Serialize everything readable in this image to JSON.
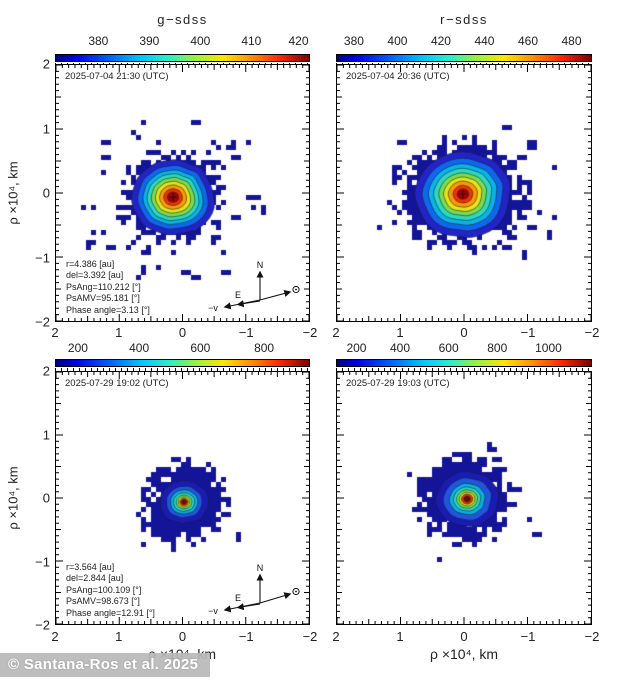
{
  "watermark": "© Santana-Ros et al. 2025",
  "compass": {
    "north": "N",
    "east": "E",
    "neg_velocity": "−v"
  },
  "axis": {
    "x_title": "ρ ×10⁴,  km",
    "y_title": "ρ ×10⁴,  km",
    "ticks": [
      "2",
      "1",
      "0",
      "−1",
      "−2"
    ]
  },
  "chart_data": {
    "type": "heatmap",
    "description": "Four-panel pixelated coma intensity maps with jet-colormap contour levels; axes in projected distance rho x10^4 km, both axes spanning 2 to -2 (inverted).",
    "x_range": [
      2,
      -2
    ],
    "y_range": [
      -2,
      2
    ],
    "panels": [
      {
        "id": "top-left",
        "title": "g−sdss",
        "timestamp": "2025-07-04 21:30 (UTC)",
        "colorbar_ticks": [
          {
            "label": "380",
            "pos": 0.17
          },
          {
            "label": "390",
            "pos": 0.37
          },
          {
            "label": "400",
            "pos": 0.57
          },
          {
            "label": "410",
            "pos": 0.77
          },
          {
            "label": "420",
            "pos": 0.955
          }
        ],
        "annotation": [
          "r=4.386 [au]",
          "del=3.392 [au]",
          "PsAng=110.212 [°]",
          "PsAMV=95.181  [°]",
          "Phase angle=3.13 [°]"
        ],
        "blob": {
          "seed": 11,
          "pixel": 5,
          "cx": 0.459,
          "cy": 0.512,
          "mass_rx": 50,
          "mass_ry": 44,
          "scatter_count": 62,
          "scatter_rx": 92,
          "scatter_ry": 78,
          "rings": [
            {
              "r": 40,
              "color": "#2323c8"
            },
            {
              "r": 34,
              "color": "#1166ee"
            },
            {
              "r": 29,
              "color": "#09b4e8"
            },
            {
              "r": 25,
              "color": "#2fd8c0"
            },
            {
              "r": 21,
              "color": "#7fdc48"
            },
            {
              "r": 17,
              "color": "#e6e41a"
            },
            {
              "r": 13,
              "color": "#ff9a00"
            },
            {
              "r": 9,
              "color": "#ee3300"
            },
            {
              "r": 5.5,
              "color": "#aa0000"
            }
          ],
          "cross": true
        }
      },
      {
        "id": "top-right",
        "title": "r−sdss",
        "timestamp": "2025-07-04 20:36 (UTC)",
        "colorbar_ticks": [
          {
            "label": "380",
            "pos": 0.07
          },
          {
            "label": "400",
            "pos": 0.24
          },
          {
            "label": "420",
            "pos": 0.41
          },
          {
            "label": "440",
            "pos": 0.58
          },
          {
            "label": "460",
            "pos": 0.75
          },
          {
            "label": "480",
            "pos": 0.92
          }
        ],
        "annotation": null,
        "blob": {
          "seed": 23,
          "pixel": 5,
          "cx": 0.492,
          "cy": 0.5,
          "mass_rx": 66,
          "mass_ry": 53,
          "scatter_count": 26,
          "scatter_rx": 88,
          "scatter_ry": 70,
          "rings": [
            {
              "r": 46,
              "color": "#2323c8"
            },
            {
              "r": 39,
              "color": "#1166ee"
            },
            {
              "r": 33,
              "color": "#09b4e8"
            },
            {
              "r": 28,
              "color": "#2fd8c0"
            },
            {
              "r": 23,
              "color": "#7fdc48"
            },
            {
              "r": 18.5,
              "color": "#e6e41a"
            },
            {
              "r": 14,
              "color": "#ff9a00"
            },
            {
              "r": 9.5,
              "color": "#ee3300"
            },
            {
              "r": 5.5,
              "color": "#aa0000"
            }
          ],
          "cross": true
        }
      },
      {
        "id": "bottom-left",
        "title": null,
        "timestamp": "2025-07-29 19:02 (UTC)",
        "colorbar_ticks": [
          {
            "label": "200",
            "pos": 0.09
          },
          {
            "label": "400",
            "pos": 0.33
          },
          {
            "label": "600",
            "pos": 0.57
          },
          {
            "label": "800",
            "pos": 0.82
          }
        ],
        "annotation": [
          "r=3.564 [au]",
          "del=2.844 [au]",
          "PsAng=100.109 [°]",
          "PsAMV=98.673  [°]",
          "Phase angle=12.91 [°]"
        ],
        "blob": {
          "seed": 37,
          "pixel": 5,
          "cx": 0.502,
          "cy": 0.512,
          "mass_rx": 44,
          "mass_ry": 41,
          "scatter_count": 6,
          "scatter_rx": 62,
          "scatter_ry": 56,
          "rings": [
            {
              "r": 23,
              "color": "#1b1bb4"
            },
            {
              "r": 17,
              "color": "#2255dd"
            },
            {
              "r": 13,
              "color": "#0ab0e0"
            },
            {
              "r": 10,
              "color": "#2fd8c0"
            },
            {
              "r": 7.5,
              "color": "#7fdc48"
            },
            {
              "r": 5.5,
              "color": "#e6e41a"
            },
            {
              "r": 4,
              "color": "#ee3300"
            },
            {
              "r": 2.5,
              "color": "#701000"
            }
          ],
          "cross": false
        }
      },
      {
        "id": "bottom-right",
        "title": null,
        "timestamp": "2025-07-29 19:03 (UTC)",
        "colorbar_ticks": [
          {
            "label": "200",
            "pos": 0.08
          },
          {
            "label": "400",
            "pos": 0.25
          },
          {
            "label": "600",
            "pos": 0.44
          },
          {
            "label": "800",
            "pos": 0.63
          },
          {
            "label": "1000",
            "pos": 0.83
          }
        ],
        "annotation": null,
        "blob": {
          "seed": 51,
          "pixel": 5,
          "cx": 0.508,
          "cy": 0.5,
          "mass_rx": 50,
          "mass_ry": 46,
          "scatter_count": 10,
          "scatter_rx": 70,
          "scatter_ry": 62,
          "rings": [
            {
              "r": 30,
              "color": "#1b1bb4"
            },
            {
              "r": 23,
              "color": "#2255dd"
            },
            {
              "r": 17,
              "color": "#0ab0e0"
            },
            {
              "r": 13,
              "color": "#2fd8c0"
            },
            {
              "r": 10,
              "color": "#7fdc48"
            },
            {
              "r": 7.5,
              "color": "#e6e41a"
            },
            {
              "r": 5.5,
              "color": "#ee3300"
            },
            {
              "r": 3.2,
              "color": "#5f1208"
            }
          ],
          "cross": false
        }
      }
    ]
  }
}
